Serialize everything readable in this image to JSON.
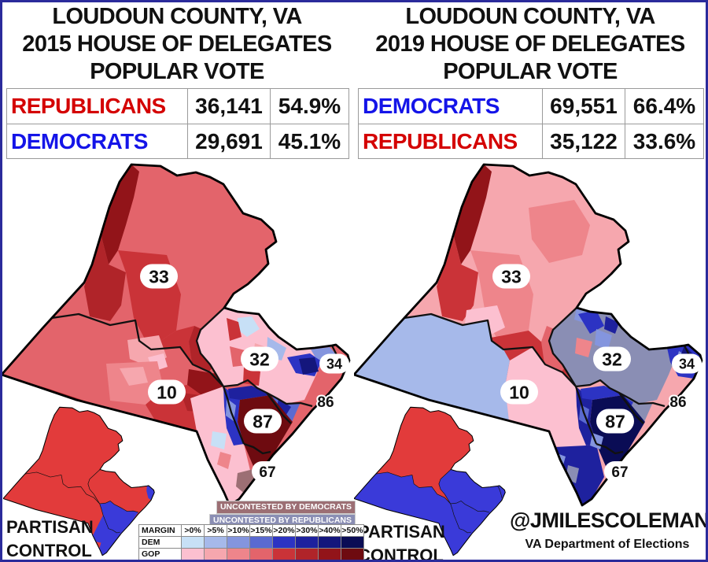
{
  "page": {
    "border_color": "#2b2b9b",
    "background": "#ffffff"
  },
  "panels": [
    {
      "year": "2015",
      "title_lines": [
        "LOUDOUN COUNTY, VA",
        "2015 HOUSE OF DELEGATES",
        "POPULAR VOTE"
      ],
      "results": [
        {
          "party": "REPUBLICANS",
          "party_color": "#d40000",
          "votes": "36,141",
          "pct": "54.9%"
        },
        {
          "party": "DEMOCRATS",
          "party_color": "#1414e8",
          "votes": "29,691",
          "pct": "45.1%"
        }
      ],
      "partisan_control_lines": [
        "PARTISAN",
        "CONTROL"
      ]
    },
    {
      "year": "2019",
      "title_lines": [
        "LOUDOUN COUNTY, VA",
        "2019 HOUSE OF DELEGATES",
        "POPULAR VOTE"
      ],
      "results": [
        {
          "party": "DEMOCRATS",
          "party_color": "#1414e8",
          "votes": "69,551",
          "pct": "66.4%"
        },
        {
          "party": "REPUBLICANS",
          "party_color": "#d40000",
          "votes": "35,122",
          "pct": "33.6%"
        }
      ],
      "partisan_control_lines": [
        "PARTISAN",
        "CONTROL"
      ]
    }
  ],
  "map": {
    "district_labels": [
      "33",
      "32",
      "34",
      "10",
      "87",
      "86",
      "67"
    ]
  },
  "legend": {
    "uncontested": [
      {
        "label": "UNCONTESTED BY DEMOCRATS",
        "color": "#9c6f74"
      },
      {
        "label": "UNCONTESTED BY REPUBLICANS",
        "color": "#8a8eb4"
      }
    ],
    "margin_header": [
      "MARGIN",
      ">0%",
      ">5%",
      ">10%",
      ">15%",
      ">20%",
      ">30%",
      ">40%",
      ">50%"
    ],
    "scale_rows": [
      {
        "label": "DEM",
        "colors": [
          "#c7e0f6",
          "#a6b9ea",
          "#8495de",
          "#5a6ad1",
          "#2c33c3",
          "#1e219e",
          "#14167c",
          "#0a0c55"
        ]
      },
      {
        "label": "GOP",
        "colors": [
          "#fcc0d0",
          "#f6a7ae",
          "#ee858b",
          "#e3646b",
          "#ca3338",
          "#b02429",
          "#921419",
          "#6e0b10"
        ]
      }
    ],
    "control_colors": {
      "dem": "#3a3ad9",
      "gop": "#e23b3b"
    }
  },
  "credits": {
    "handle": "@JMILESCOLEMAN",
    "source": "VA Department of Elections"
  }
}
